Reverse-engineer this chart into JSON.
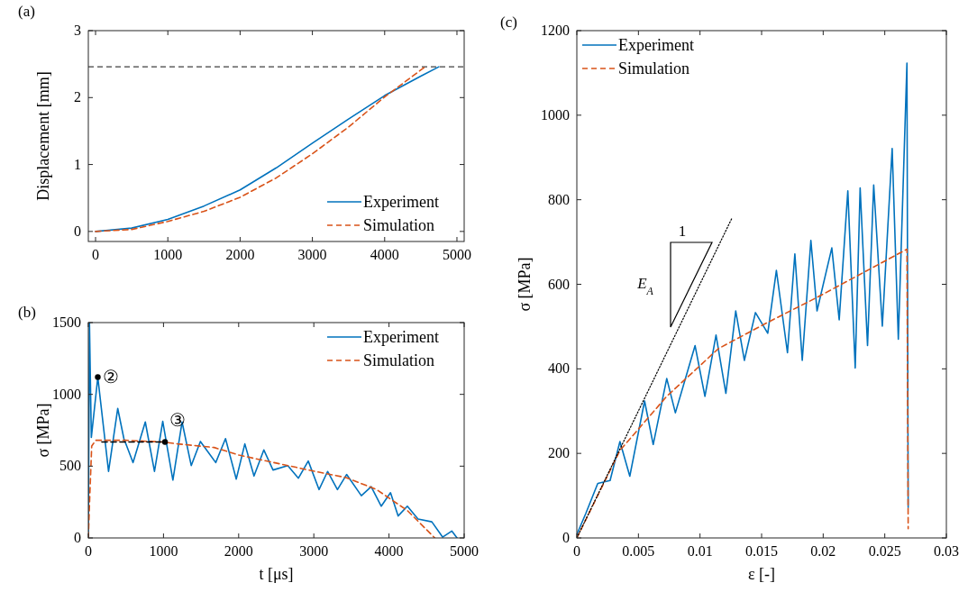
{
  "chart_data": [
    {
      "type": "line",
      "title": "(a)",
      "ylabel": "Displacement [mm]",
      "xlim": [
        -100,
        5100
      ],
      "xticks": [
        0,
        1000,
        2000,
        3000,
        4000,
        5000
      ],
      "ylim": [
        -0.15,
        3
      ],
      "yticks": [
        0,
        1,
        2,
        3
      ],
      "legend": "bottom right",
      "ref_lines": [
        {
          "axis": "y",
          "value": 2.46,
          "color": "#404040",
          "line_style": "dashed"
        }
      ],
      "series": [
        {
          "name": "Experiment",
          "color": "#0072bd",
          "line_style": "solid",
          "x": [
            0,
            500,
            1000,
            1500,
            2000,
            2500,
            3000,
            3500,
            4000,
            4500,
            4750
          ],
          "values": [
            0,
            0.05,
            0.18,
            0.38,
            0.62,
            0.95,
            1.32,
            1.68,
            2.03,
            2.32,
            2.46
          ]
        },
        {
          "name": "Simulation",
          "color": "#d95319",
          "line_style": "dashed",
          "x": [
            0,
            500,
            1000,
            1500,
            2000,
            2500,
            3000,
            3500,
            4000,
            4300,
            4560
          ],
          "values": [
            0,
            0.03,
            0.15,
            0.3,
            0.51,
            0.8,
            1.16,
            1.56,
            2.01,
            2.25,
            2.46
          ]
        }
      ]
    },
    {
      "type": "line",
      "title": "(b)",
      "xlabel": "t [μs]",
      "ylabel": "σ [MPa]",
      "xlim": [
        0,
        5000
      ],
      "xticks": [
        0,
        1000,
        2000,
        3000,
        4000,
        5000
      ],
      "ylim": [
        0,
        1500
      ],
      "yticks": [
        0,
        500,
        1000,
        1500
      ],
      "legend": "top right",
      "annotations": [
        {
          "text": "②",
          "x": 126,
          "y": 1120
        },
        {
          "text": "③",
          "x": 1020,
          "y": 668
        }
      ],
      "series": [
        {
          "name": "Experiment",
          "color": "#0072bd",
          "line_style": "solid",
          "x": [
            0,
            15,
            40,
            126,
            269,
            391,
            473,
            595,
            758,
            880,
            990,
            1125,
            1247,
            1369,
            1491,
            1695,
            1825,
            1968,
            2082,
            2204,
            2335,
            2457,
            2653,
            2795,
            2926,
            3069,
            3183,
            3314,
            3436,
            3632,
            3763,
            3897,
            4020,
            4121,
            4244,
            4386,
            4570,
            4713,
            4835,
            4905
          ],
          "values": [
            0,
            1500,
            700,
            1120,
            463,
            902,
            692,
            525,
            808,
            463,
            812,
            403,
            808,
            504,
            672,
            525,
            692,
            410,
            655,
            431,
            613,
            473,
            504,
            416,
            536,
            337,
            463,
            337,
            442,
            294,
            357,
            221,
            315,
            153,
            221,
            132,
            112,
            6,
            48,
            0
          ]
        },
        {
          "name": "Simulation",
          "color": "#d95319",
          "line_style": "dashed",
          "x": [
            0,
            20,
            45,
            100,
            500,
            1000,
            1186,
            1675,
            2004,
            3019,
            3427,
            3835,
            4244,
            4609
          ],
          "values": [
            0,
            300,
            640,
            680,
            680,
            668,
            655,
            630,
            577,
            463,
            421,
            337,
            191,
            0
          ]
        },
        {
          "type": "line",
          "color": "#000000",
          "line_style": "dashed",
          "x": [
            180,
            1020
          ],
          "values": [
            668,
            668
          ]
        },
        {
          "type": "scatter",
          "color": "#000000",
          "marker": "circle",
          "x": [
            126,
            1020
          ],
          "values": [
            1120,
            668
          ]
        }
      ]
    },
    {
      "type": "line",
      "title": "(c)",
      "xlabel": "ε [-]",
      "ylabel": "σ [MPa]",
      "xlim": [
        0,
        0.03
      ],
      "xticks": [
        0,
        0.005,
        0.01,
        0.015,
        0.02,
        0.025,
        0.03
      ],
      "ylim": [
        0,
        1200
      ],
      "yticks": [
        0,
        200,
        400,
        600,
        800,
        1000,
        1200
      ],
      "legend": "top left",
      "annotations": [
        "1",
        "E$_{A}$"
      ],
      "series": [
        {
          "name": "Experiment",
          "color": "#0072bd",
          "line_style": "solid",
          "x": [
            0,
            0.00073,
            0.0017,
            0.0027,
            0.0035,
            0.0043,
            0.0055,
            0.0062,
            0.0073,
            0.008,
            0.0096,
            0.0104,
            0.0113,
            0.0121,
            0.0129,
            0.0136,
            0.0145,
            0.0155,
            0.0162,
            0.0171,
            0.0177,
            0.0183,
            0.019,
            0.0195,
            0.0207,
            0.0213,
            0.022,
            0.0226,
            0.023,
            0.0236,
            0.0241,
            0.0248,
            0.0256,
            0.0261,
            0.0268,
            0.0269
          ],
          "values": [
            8,
            58,
            129,
            136,
            228,
            146,
            324,
            221,
            377,
            296,
            455,
            335,
            480,
            342,
            537,
            420,
            533,
            484,
            633,
            438,
            672,
            420,
            704,
            537,
            686,
            516,
            821,
            402,
            828,
            455,
            835,
            501,
            921,
            470,
            1123,
            72
          ]
        },
        {
          "name": "Simulation",
          "color": "#d95319",
          "line_style": "dashed",
          "x": [
            0,
            0.0035,
            0.0073,
            0.0115,
            0.0155,
            0.0195,
            0.0268,
            0.0269
          ],
          "values": [
            0,
            207,
            335,
            448,
            510,
            569,
            683,
            22
          ]
        },
        {
          "type": "line",
          "color": "#000000",
          "line_style": "dotted",
          "x": [
            0,
            0.0126
          ],
          "values": [
            0,
            757
          ]
        }
      ]
    }
  ]
}
